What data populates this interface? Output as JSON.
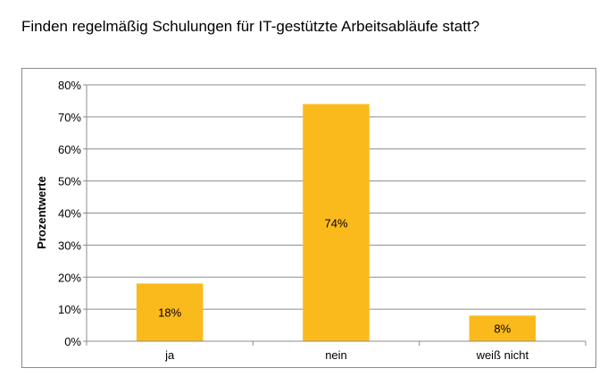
{
  "chart_data": {
    "type": "bar",
    "title": "Finden regelmäßig Schulungen für IT-gestützte Arbeitsabläufe statt?",
    "ylabel": "Prozentwerte",
    "xlabel": "",
    "categories": [
      "ja",
      "nein",
      "weiß nicht"
    ],
    "values": [
      18,
      74,
      8
    ],
    "value_labels": [
      "18%",
      "74%",
      "8%"
    ],
    "ylim": [
      0,
      80
    ],
    "yticks": [
      "0%",
      "10%",
      "20%",
      "30%",
      "40%",
      "50%",
      "60%",
      "70%",
      "80%"
    ],
    "grid": true,
    "legend": "none",
    "bar_color": "#FBBA1C",
    "grid_color": "#8c8c8c"
  }
}
